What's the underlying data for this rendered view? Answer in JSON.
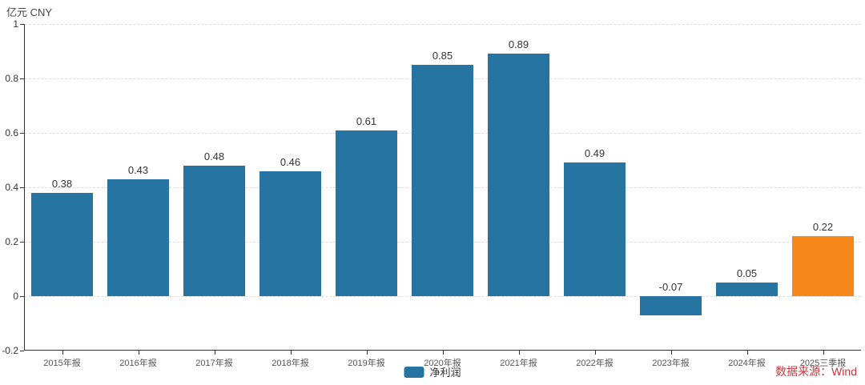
{
  "unit_label": "亿元  CNY",
  "source_label": "数据来源：Wind",
  "legend": {
    "items": [
      {
        "label": "净利润",
        "color": "#2574a2"
      }
    ]
  },
  "colors": {
    "bar_blue": "#2574a2",
    "bar_orange": "#f5881a",
    "axis": "#333333",
    "grid": "#dddddd",
    "source_red": "#c5363c"
  },
  "chart_data": {
    "type": "bar",
    "title": "",
    "xlabel": "",
    "ylabel": "亿元 CNY",
    "categories": [
      "2015年报",
      "2016年报",
      "2017年报",
      "2018年报",
      "2019年报",
      "2020年报",
      "2021年报",
      "2022年报",
      "2023年报",
      "2024年报",
      "2025三季报"
    ],
    "series": [
      {
        "name": "净利润",
        "values": [
          0.38,
          0.43,
          0.48,
          0.46,
          0.61,
          0.85,
          0.89,
          0.49,
          -0.07,
          0.05,
          0.22
        ]
      }
    ],
    "value_labels": [
      "0.38",
      "0.43",
      "0.48",
      "0.46",
      "0.61",
      "0.85",
      "0.89",
      "0.49",
      "-0.07",
      "0.05",
      "0.22"
    ],
    "bar_colors": [
      "#2574a2",
      "#2574a2",
      "#2574a2",
      "#2574a2",
      "#2574a2",
      "#2574a2",
      "#2574a2",
      "#2574a2",
      "#2574a2",
      "#2574a2",
      "#f5881a"
    ],
    "ylim": [
      -0.2,
      1
    ],
    "ytick_labels": [
      "1",
      "0.8",
      "0.6",
      "0.4",
      "0.2",
      "0",
      "-0.2"
    ],
    "ytick_values": [
      1,
      0.8,
      0.6,
      0.4,
      0.2,
      0,
      -0.2
    ],
    "grid": "horizontal-dashed",
    "legend_position": "bottom-center"
  }
}
